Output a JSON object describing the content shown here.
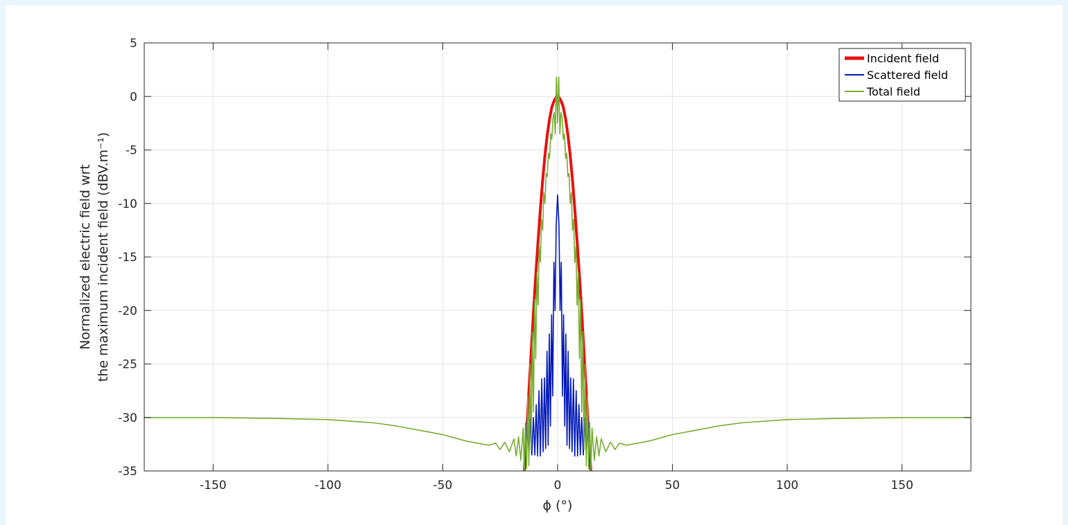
{
  "chart_data": {
    "type": "line",
    "title": "",
    "xlabel": "ϕ (°)",
    "ylabel_line1": "Normalized electric field wrt",
    "ylabel_line2": "the maximum incident field (dBV.m⁻¹)",
    "xlim": [
      -180,
      180
    ],
    "ylim": [
      -35,
      5
    ],
    "xticks": [
      -150,
      -100,
      -50,
      0,
      50,
      100,
      150
    ],
    "yticks": [
      5,
      0,
      -5,
      -10,
      -15,
      -20,
      -25,
      -30,
      -35
    ],
    "grid": true,
    "legend_position": "top-right",
    "colors": {
      "incident": "#e8100f",
      "scattered": "#0018b8",
      "total": "#77ac30",
      "grid": "#e2e2e2",
      "axis": "#262626"
    },
    "series": [
      {
        "name": "Incident field",
        "x": [
          -14.5,
          -13.5,
          -12.5,
          -11.5,
          -10.5,
          -9.5,
          -8.5,
          -7.5,
          -6.5,
          -5.5,
          -4.5,
          -3.5,
          -2.5,
          -1.5,
          -0.5,
          0,
          0.5,
          1.5,
          2.5,
          3.5,
          4.5,
          5.5,
          6.5,
          7.5,
          8.5,
          9.5,
          10.5,
          11.5,
          12.5,
          13.5,
          14.5
        ],
        "y": [
          -35.0,
          -31.5,
          -27.6,
          -23.9,
          -20.2,
          -16.7,
          -13.5,
          -10.5,
          -7.8,
          -5.5,
          -3.6,
          -2.1,
          -1.0,
          -0.4,
          -0.05,
          0.0,
          -0.05,
          -0.4,
          -1.0,
          -2.1,
          -3.6,
          -5.5,
          -7.8,
          -10.5,
          -13.5,
          -16.7,
          -20.2,
          -23.9,
          -27.6,
          -31.5,
          -35.0
        ]
      },
      {
        "name": "Scattered field",
        "x": [
          -14.5,
          -13.8,
          -13.2,
          -12.5,
          -11.8,
          -11.2,
          -10.5,
          -9.9,
          -9.3,
          -8.7,
          -8.1,
          -7.5,
          -6.9,
          -6.3,
          -5.7,
          -5.2,
          -4.6,
          -4.1,
          -3.6,
          -3.1,
          -2.6,
          -2.1,
          -1.6,
          -1.1,
          -0.6,
          0,
          0.6,
          1.1,
          1.6,
          2.1,
          2.6,
          3.1,
          3.6,
          4.1,
          4.6,
          5.2,
          5.7,
          6.3,
          6.9,
          7.5,
          8.1,
          8.7,
          9.3,
          9.9,
          10.5,
          11.2,
          11.8,
          12.5,
          13.2,
          13.8,
          14.5
        ],
        "y": [
          -35.0,
          -33.5,
          -30.0,
          -33.5,
          -30.0,
          -33.5,
          -30.0,
          -33.5,
          -28.8,
          -33.6,
          -27.5,
          -33.6,
          -26.4,
          -33.2,
          -26.3,
          -32.9,
          -23.8,
          -32.6,
          -22.2,
          -30.8,
          -20.4,
          -28.0,
          -15.5,
          -20.0,
          -12.0,
          -9.2,
          -12.0,
          -20.0,
          -15.5,
          -28.0,
          -20.4,
          -30.8,
          -22.2,
          -32.6,
          -23.8,
          -32.9,
          -26.3,
          -33.2,
          -26.4,
          -33.6,
          -27.5,
          -33.6,
          -28.8,
          -33.5,
          -30.0,
          -33.5,
          -30.0,
          -33.5,
          -30.0,
          -33.5,
          -35.0
        ]
      },
      {
        "name": "Total field",
        "x": [
          -180,
          -150,
          -120,
          -100,
          -80,
          -70,
          -60,
          -50,
          -40,
          -30,
          -27,
          -25,
          -23,
          -21,
          -19,
          -18,
          -17,
          -16,
          -15,
          -14.5,
          -14,
          -13.5,
          -13,
          -12.5,
          -12,
          -11.5,
          -11,
          -10.5,
          -10,
          -9.5,
          -9,
          -8.5,
          -8,
          -7.5,
          -7,
          -6.5,
          -6,
          -5.5,
          -5,
          -4.5,
          -4,
          -3.5,
          -3,
          -2.5,
          -2,
          -1.5,
          -1,
          -0.5,
          0,
          0.5,
          1,
          1.5,
          2,
          2.5,
          3,
          3.5,
          4,
          4.5,
          5,
          5.5,
          6,
          6.5,
          7,
          7.5,
          8,
          8.5,
          9,
          9.5,
          10,
          10.5,
          11,
          11.5,
          12,
          12.5,
          13,
          13.5,
          14,
          14.5,
          15,
          16,
          17,
          18,
          19,
          21,
          23,
          25,
          27,
          30,
          40,
          50,
          60,
          70,
          80,
          100,
          120,
          150,
          180
        ],
        "y": [
          -30.0,
          -30.0,
          -30.1,
          -30.2,
          -30.5,
          -30.8,
          -31.2,
          -31.6,
          -32.2,
          -32.6,
          -32.4,
          -33.0,
          -32.3,
          -33.2,
          -32.0,
          -33.6,
          -31.8,
          -34.0,
          -31.0,
          -35.0,
          -30.5,
          -34.8,
          -28.0,
          -34.5,
          -25.0,
          -33.0,
          -22.0,
          -29.5,
          -19.0,
          -24.5,
          -16.5,
          -19.5,
          -14.0,
          -15.5,
          -11.5,
          -12.5,
          -9.0,
          -10.0,
          -7.2,
          -7.5,
          -5.3,
          -5.8,
          -3.5,
          -4.0,
          -2.0,
          -1.5,
          -3.5,
          1.8,
          -2.5,
          1.8,
          -3.5,
          -1.5,
          -2.0,
          -4.0,
          -3.5,
          -5.8,
          -5.3,
          -7.5,
          -7.2,
          -10.0,
          -9.0,
          -12.5,
          -11.5,
          -15.5,
          -14.0,
          -19.5,
          -16.5,
          -24.5,
          -19.0,
          -29.5,
          -22.0,
          -33.0,
          -25.0,
          -34.5,
          -28.0,
          -34.8,
          -30.5,
          -35.0,
          -31.0,
          -34.0,
          -31.8,
          -33.6,
          -32.0,
          -33.2,
          -32.3,
          -33.0,
          -32.4,
          -32.6,
          -32.2,
          -31.6,
          -31.2,
          -30.8,
          -30.5,
          -30.2,
          -30.1,
          -30.0,
          -30.0
        ]
      }
    ]
  }
}
